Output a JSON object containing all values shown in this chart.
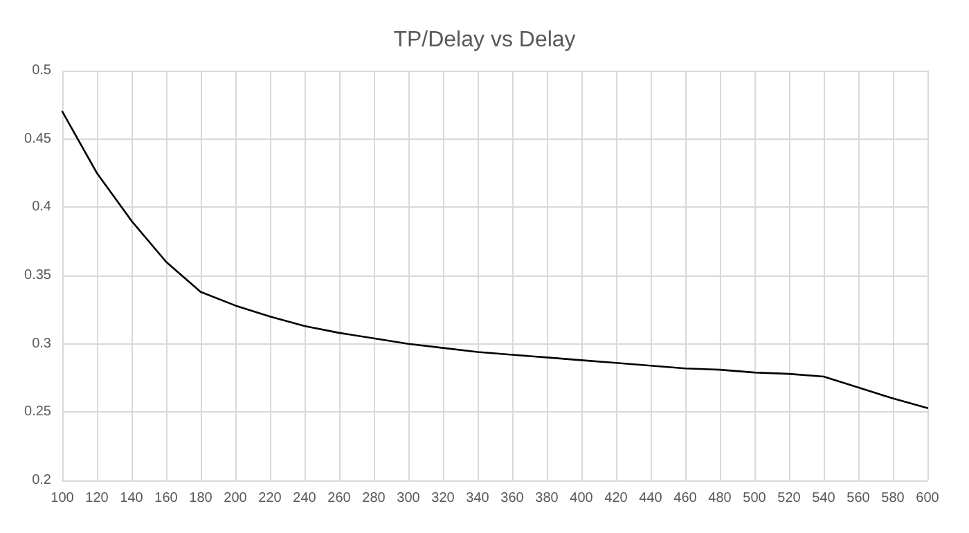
{
  "chart_data": {
    "type": "line",
    "title": "TP/Delay vs Delay",
    "x": [
      100,
      120,
      140,
      160,
      180,
      200,
      220,
      240,
      260,
      280,
      300,
      320,
      340,
      360,
      380,
      400,
      420,
      440,
      460,
      480,
      500,
      520,
      540,
      560,
      580,
      600
    ],
    "series": [
      {
        "color": "#000000",
        "values": [
          0.47,
          0.425,
          0.39,
          0.36,
          0.338,
          0.328,
          0.32,
          0.313,
          0.308,
          0.304,
          0.3,
          0.297,
          0.294,
          0.292,
          0.29,
          0.288,
          0.286,
          0.284,
          0.282,
          0.281,
          0.279,
          0.278,
          0.276,
          0.268,
          0.26,
          0.253
        ]
      }
    ],
    "xlim": [
      100,
      600
    ],
    "xticks": [
      100,
      120,
      140,
      160,
      180,
      200,
      220,
      240,
      260,
      280,
      300,
      320,
      340,
      360,
      380,
      400,
      420,
      440,
      460,
      480,
      500,
      520,
      540,
      560,
      580,
      600
    ],
    "ylim": [
      0.2,
      0.5
    ],
    "yticks": [
      0.2,
      0.25,
      0.3,
      0.35,
      0.4,
      0.45,
      0.5
    ],
    "grid": true,
    "marker": "none",
    "line_style": "solid"
  }
}
